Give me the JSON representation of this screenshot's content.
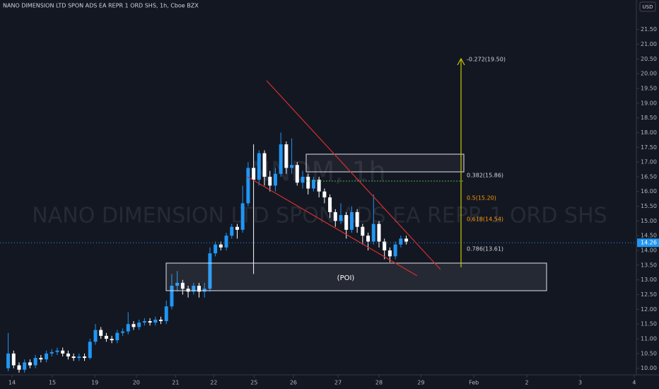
{
  "chart_data": {
    "type": "candlestick",
    "title": "NANO DIMENSION LTD SPON ADS EA REPR 1 ORD SHS, 1h, Cboe BZX",
    "watermark_symbol": "NNDM, 1h",
    "watermark_name": "NANO DIMENSION LTD SPON ADS EA REPR 1 ORD SHS",
    "currency": "USD",
    "last_price": 14.26,
    "up_color": "#2196f3",
    "down_color": "#ffffff",
    "grid": false,
    "x": [
      0,
      1,
      2,
      3,
      4,
      5,
      6,
      7,
      8,
      9,
      10,
      11,
      12,
      13,
      14,
      15,
      16,
      17,
      18,
      19,
      20,
      21,
      22,
      23,
      24,
      25,
      26,
      27,
      28,
      29,
      30,
      31,
      32,
      33,
      34,
      35,
      36,
      37,
      38,
      39,
      40,
      41,
      42,
      43,
      44,
      45,
      46,
      47,
      48,
      49,
      50,
      51,
      52,
      53,
      54,
      55,
      56,
      57,
      58,
      59,
      60,
      61,
      62,
      63,
      64,
      65,
      66,
      67,
      68,
      69,
      70,
      71,
      72,
      73
    ],
    "open": [
      10.0,
      10.5,
      10.1,
      9.95,
      10.2,
      10.1,
      10.35,
      10.3,
      10.5,
      10.55,
      10.6,
      10.5,
      10.4,
      10.35,
      10.4,
      10.35,
      10.9,
      11.3,
      11.1,
      11.0,
      10.95,
      11.2,
      11.25,
      11.5,
      11.4,
      11.55,
      11.6,
      11.55,
      11.65,
      11.6,
      12.1,
      12.8,
      12.9,
      12.7,
      12.6,
      12.8,
      12.6,
      12.7,
      13.9,
      14.2,
      14.1,
      14.5,
      14.8,
      14.7,
      15.6,
      16.8,
      16.4,
      17.3,
      16.5,
      16.2,
      16.6,
      17.6,
      16.8,
      16.9,
      16.3,
      16.5,
      16.1,
      16.4,
      16.0,
      15.8,
      15.3,
      15.0,
      15.2,
      14.7,
      15.3,
      14.8,
      14.5,
      14.3,
      14.9,
      14.3,
      14.0,
      13.8,
      14.2,
      14.4
    ],
    "high": [
      11.2,
      10.6,
      10.2,
      10.3,
      10.3,
      10.45,
      10.45,
      10.6,
      10.65,
      10.7,
      10.7,
      10.6,
      10.5,
      10.5,
      10.5,
      11.0,
      11.5,
      11.4,
      11.2,
      11.1,
      11.3,
      11.35,
      11.9,
      11.6,
      11.65,
      11.7,
      11.7,
      11.75,
      11.75,
      12.3,
      13.2,
      13.3,
      13.0,
      12.8,
      12.9,
      12.9,
      12.9,
      14.1,
      14.3,
      14.3,
      14.6,
      14.9,
      14.9,
      16.2,
      17.0,
      17.6,
      17.4,
      17.4,
      16.7,
      16.8,
      18.0,
      17.7,
      17.8,
      17.0,
      16.7,
      16.6,
      16.5,
      16.5,
      16.1,
      15.9,
      15.4,
      15.6,
      15.3,
      15.5,
      15.4,
      14.9,
      14.6,
      15.9,
      15.0,
      14.4,
      14.1,
      14.3,
      14.5,
      14.5
    ],
    "low": [
      9.9,
      10.0,
      9.85,
      9.85,
      10.0,
      10.0,
      10.2,
      10.2,
      10.4,
      10.45,
      10.4,
      10.3,
      10.25,
      10.25,
      10.25,
      10.3,
      10.8,
      11.0,
      10.9,
      10.85,
      10.85,
      11.1,
      11.15,
      11.3,
      11.3,
      11.45,
      11.45,
      11.45,
      11.5,
      11.5,
      12.0,
      12.6,
      12.5,
      12.4,
      12.5,
      12.4,
      12.4,
      12.6,
      13.8,
      14.0,
      14.0,
      14.4,
      14.4,
      14.6,
      15.5,
      13.2,
      16.2,
      16.2,
      16.0,
      16.0,
      16.5,
      16.6,
      16.6,
      16.2,
      16.1,
      15.9,
      16.0,
      15.8,
      15.6,
      15.1,
      14.8,
      14.9,
      14.4,
      14.6,
      14.6,
      14.2,
      14.0,
      14.2,
      14.1,
      13.7,
      13.6,
      13.7,
      14.1,
      14.2
    ],
    "close": [
      10.5,
      10.1,
      9.95,
      10.2,
      10.1,
      10.35,
      10.3,
      10.5,
      10.55,
      10.6,
      10.5,
      10.4,
      10.35,
      10.4,
      10.35,
      10.9,
      11.3,
      11.1,
      11.0,
      10.95,
      11.2,
      11.25,
      11.5,
      11.4,
      11.55,
      11.6,
      11.55,
      11.65,
      11.6,
      12.1,
      12.8,
      12.9,
      12.7,
      12.6,
      12.8,
      12.6,
      12.7,
      13.9,
      14.2,
      14.1,
      14.5,
      14.8,
      14.7,
      15.6,
      16.8,
      16.4,
      17.3,
      16.5,
      16.2,
      16.6,
      17.6,
      16.8,
      16.9,
      16.3,
      16.5,
      16.1,
      16.4,
      16.0,
      15.8,
      15.3,
      15.0,
      15.2,
      14.7,
      15.3,
      14.8,
      14.5,
      14.3,
      14.9,
      14.3,
      14.0,
      13.8,
      14.2,
      14.4,
      14.3
    ],
    "xlim": [
      -1.5,
      115.2
    ],
    "xticks": [
      {
        "value": 0.7,
        "label": "14"
      },
      {
        "value": 8.1,
        "label": "15"
      },
      {
        "value": 15.9,
        "label": "19"
      },
      {
        "value": 23.5,
        "label": "20"
      },
      {
        "value": 30.7,
        "label": "21"
      },
      {
        "value": 37.7,
        "label": "22"
      },
      {
        "value": 45.1,
        "label": "25"
      },
      {
        "value": 52.3,
        "label": "26"
      },
      {
        "value": 60.5,
        "label": "27"
      },
      {
        "value": 68,
        "label": "28"
      },
      {
        "value": 75.7,
        "label": "29"
      },
      {
        "value": 85.4,
        "label": "Feb"
      },
      {
        "value": 95.1,
        "label": "2"
      },
      {
        "value": 104.9,
        "label": "3"
      },
      {
        "value": 114.8,
        "label": "4"
      }
    ],
    "ylim": [
      9.8,
      22.5
    ],
    "yticks": [
      {
        "value": 10,
        "label": "10.00"
      },
      {
        "value": 10.5,
        "label": "10.50"
      },
      {
        "value": 11,
        "label": "11.00"
      },
      {
        "value": 11.5,
        "label": "11.50"
      },
      {
        "value": 12,
        "label": "12.00"
      },
      {
        "value": 12.5,
        "label": "12.50"
      },
      {
        "value": 13,
        "label": "13.00"
      },
      {
        "value": 13.5,
        "label": "13.50"
      },
      {
        "value": 14,
        "label": "14.00"
      },
      {
        "value": 14.5,
        "label": "14.50"
      },
      {
        "value": 15,
        "label": "15.00"
      },
      {
        "value": 15.5,
        "label": "15.50"
      },
      {
        "value": 16,
        "label": "16.00"
      },
      {
        "value": 16.5,
        "label": "16.50"
      },
      {
        "value": 17,
        "label": "17.00"
      },
      {
        "value": 17.5,
        "label": "17.50"
      },
      {
        "value": 18,
        "label": "18.00"
      },
      {
        "value": 18.5,
        "label": "18.50"
      },
      {
        "value": 19,
        "label": "19.00"
      },
      {
        "value": 19.5,
        "label": "19.50"
      },
      {
        "value": 20,
        "label": "20.00"
      },
      {
        "value": 20.5,
        "label": "20.50"
      },
      {
        "value": 21,
        "label": "21.00"
      },
      {
        "value": 21.5,
        "label": "21.50"
      }
    ],
    "annotations": {
      "fib_top": "-0.272(19.50)",
      "fib_382": "0.382(15.86)",
      "fib_5": "0.5(15.20)",
      "fib_618": "0.618(14.54)",
      "fib_786": "0.786(13.61)",
      "poi": "(POI)"
    }
  }
}
